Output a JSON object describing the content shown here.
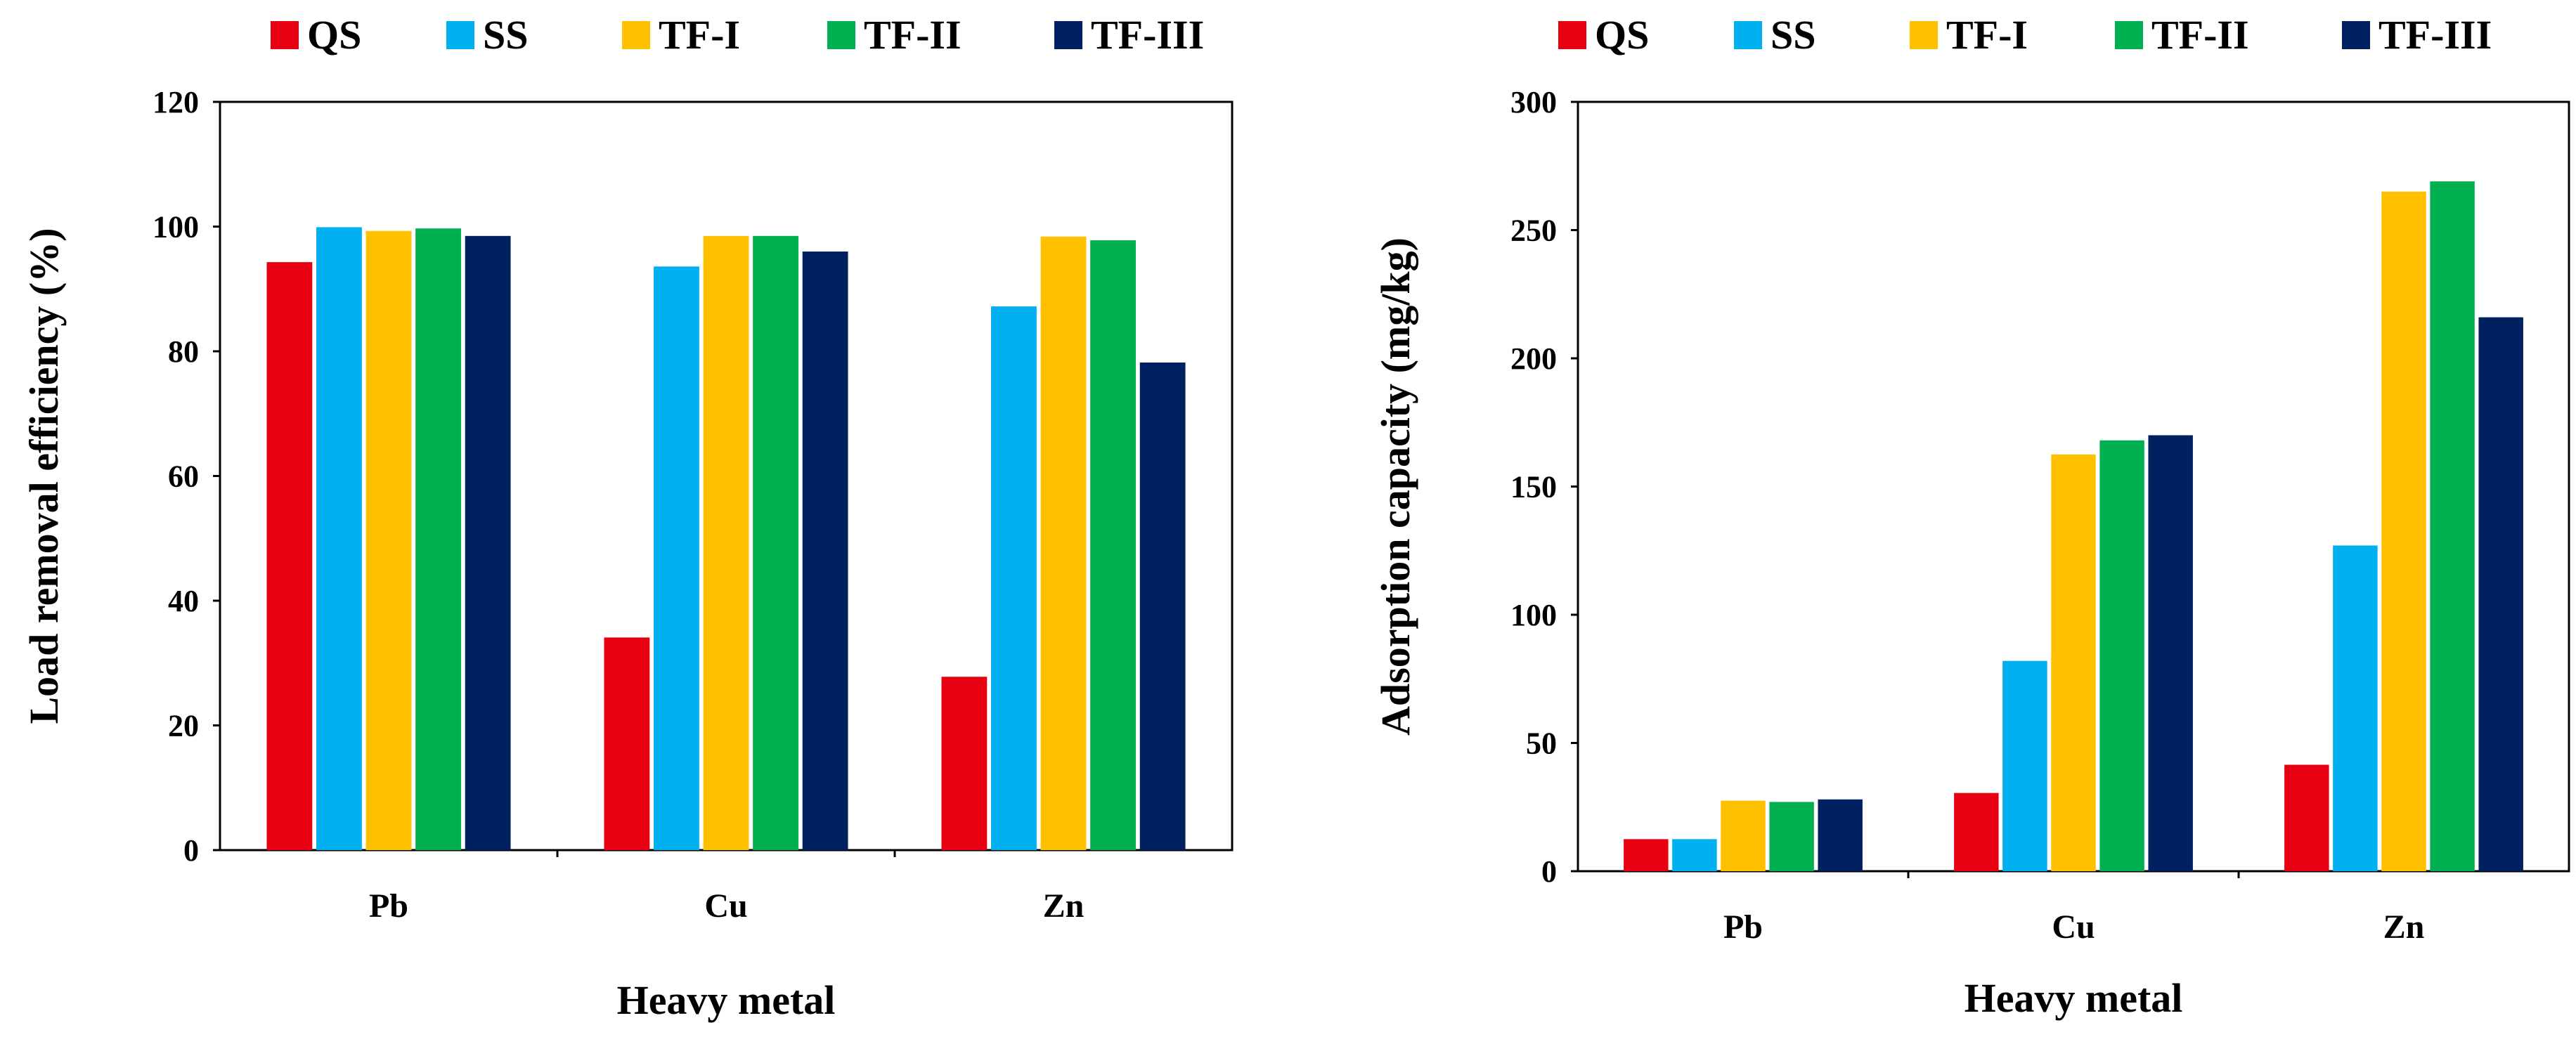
{
  "chart_data": [
    {
      "type": "bar",
      "title": "",
      "xlabel": "Heavy metal",
      "ylabel": "Load removal efficiency (%)",
      "ylim": [
        0,
        120
      ],
      "yticks": [
        0,
        20,
        40,
        60,
        80,
        100,
        120
      ],
      "categories": [
        "Pb",
        "Cu",
        "Zn"
      ],
      "legend_position": "top",
      "grid": false,
      "series": [
        {
          "name": "QS",
          "color": "#E60012",
          "values": [
            94.3,
            34.1,
            27.8
          ]
        },
        {
          "name": "SS",
          "color": "#00B0F0",
          "values": [
            99.9,
            93.6,
            87.2
          ]
        },
        {
          "name": "TF-I",
          "color": "#FFC000",
          "values": [
            99.3,
            98.5,
            98.4
          ]
        },
        {
          "name": "TF-II",
          "color": "#00B050",
          "values": [
            99.7,
            98.5,
            97.8
          ]
        },
        {
          "name": "TF-III",
          "color": "#002060",
          "values": [
            98.5,
            96.0,
            78.2
          ]
        }
      ]
    },
    {
      "type": "bar",
      "title": "",
      "xlabel": "Heavy metal",
      "ylabel": "Adsorption capacity (mg/kg)",
      "ylim": [
        0,
        300
      ],
      "yticks": [
        0,
        50,
        100,
        150,
        200,
        250,
        300
      ],
      "categories": [
        "Pb",
        "Cu",
        "Zn"
      ],
      "legend_position": "top",
      "grid": false,
      "series": [
        {
          "name": "QS",
          "color": "#E60012",
          "values": [
            12.5,
            30.5,
            41.5
          ]
        },
        {
          "name": "SS",
          "color": "#00B0F0",
          "values": [
            12.5,
            82.0,
            127.0
          ]
        },
        {
          "name": "TF-I",
          "color": "#FFC000",
          "values": [
            27.5,
            162.5,
            265.0
          ]
        },
        {
          "name": "TF-II",
          "color": "#00B050",
          "values": [
            27.0,
            168.0,
            269.0
          ]
        },
        {
          "name": "TF-III",
          "color": "#002060",
          "values": [
            28.0,
            170.0,
            216.0
          ]
        }
      ]
    }
  ]
}
